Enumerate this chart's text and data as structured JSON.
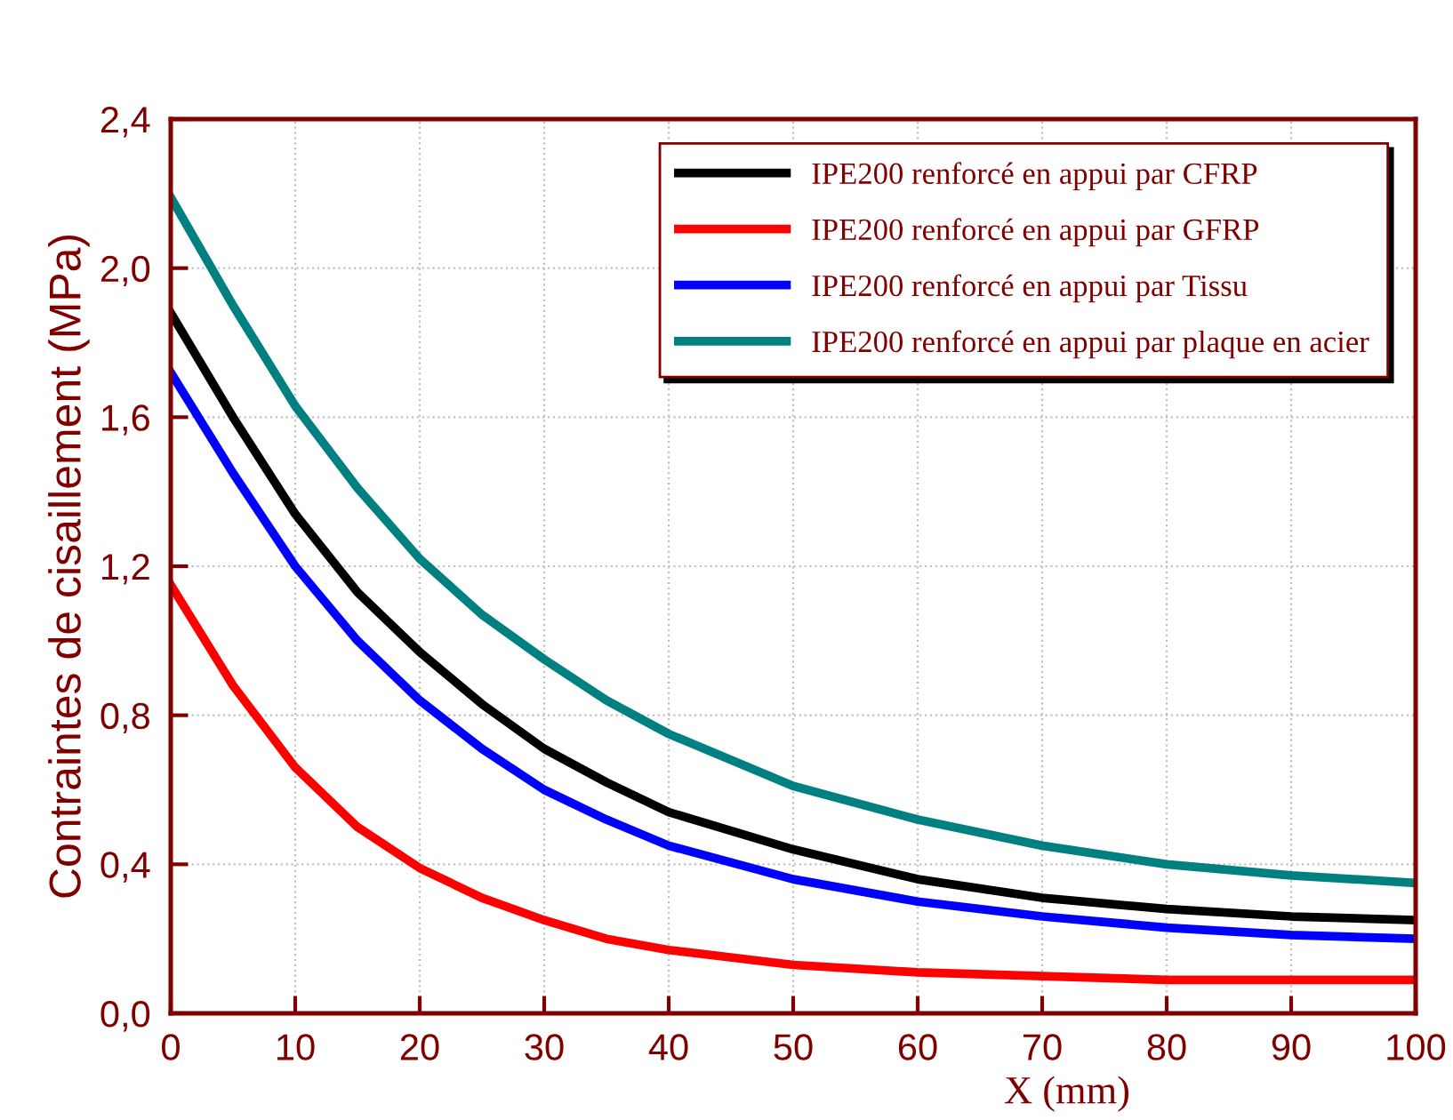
{
  "chart_data": {
    "type": "line",
    "xlabel": "X (mm)",
    "ylabel": "Contraintes de cisaillement (MPa)",
    "x": [
      0,
      5,
      10,
      15,
      20,
      25,
      30,
      35,
      40,
      50,
      60,
      70,
      80,
      90,
      100
    ],
    "series": [
      {
        "name": "IPE200 renforcé en appui par CFRP",
        "color": "#000000",
        "values": [
          1.88,
          1.6,
          1.34,
          1.13,
          0.97,
          0.83,
          0.71,
          0.62,
          0.54,
          0.44,
          0.36,
          0.31,
          0.28,
          0.26,
          0.25
        ]
      },
      {
        "name": "IPE200 renforcé en appui par GFRP",
        "color": "#ff0000",
        "values": [
          1.15,
          0.88,
          0.66,
          0.5,
          0.39,
          0.31,
          0.25,
          0.2,
          0.17,
          0.13,
          0.11,
          0.1,
          0.09,
          0.09,
          0.09
        ]
      },
      {
        "name": "IPE200 renforcé en appui par Tissu",
        "color": "#0000ff",
        "values": [
          1.72,
          1.45,
          1.2,
          1.0,
          0.84,
          0.71,
          0.6,
          0.52,
          0.45,
          0.36,
          0.3,
          0.26,
          0.23,
          0.21,
          0.2
        ]
      },
      {
        "name": "IPE200 renforcé en appui par plaque en acier",
        "color": "#008080",
        "values": [
          2.19,
          1.9,
          1.63,
          1.41,
          1.22,
          1.07,
          0.95,
          0.84,
          0.75,
          0.61,
          0.52,
          0.45,
          0.4,
          0.37,
          0.35
        ]
      }
    ],
    "xlim": [
      0,
      100
    ],
    "xticks": [
      0,
      10,
      20,
      30,
      40,
      50,
      60,
      70,
      80,
      90,
      100
    ],
    "ylim": [
      0,
      2.4
    ],
    "yticks": [
      {
        "value": 0,
        "label": "0,0"
      },
      {
        "value": 0.4,
        "label": "0,4"
      },
      {
        "value": 0.8,
        "label": "0,8"
      },
      {
        "value": 1.2,
        "label": "1,2"
      },
      {
        "value": 1.6,
        "label": "1,6"
      },
      {
        "value": 2.0,
        "label": "2,0"
      },
      {
        "value": 2.4,
        "label": "2,4"
      }
    ],
    "grid": true,
    "legend": "top right",
    "marker": "none",
    "line_style": "solid"
  }
}
